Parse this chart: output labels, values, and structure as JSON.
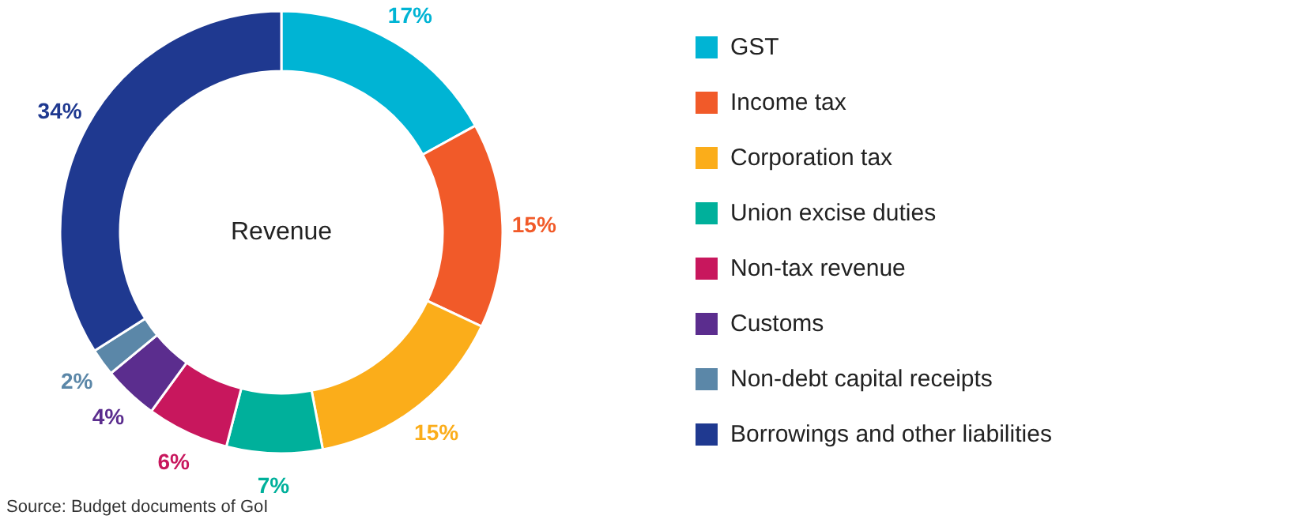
{
  "chart_data": {
    "type": "donut",
    "title": "Revenue",
    "categories": [
      "GST",
      "Income tax",
      "Corporation tax",
      "Union excise duties",
      "Non-tax revenue",
      "Customs",
      "Non-debt capital receipts",
      "Borrowings and other liabilities"
    ],
    "values": [
      17,
      15,
      15,
      7,
      6,
      4,
      2,
      34
    ],
    "value_labels": [
      "17%",
      "15%",
      "15%",
      "7%",
      "6%",
      "4%",
      "2%",
      "34%"
    ],
    "colors": [
      "#00b4d4",
      "#f15a29",
      "#fbad1a",
      "#00b09b",
      "#c8175d",
      "#5b2d8e",
      "#5b87a8",
      "#1f3990"
    ],
    "legend": "right",
    "annotations": [
      "Source: Budget documents of GoI"
    ]
  }
}
